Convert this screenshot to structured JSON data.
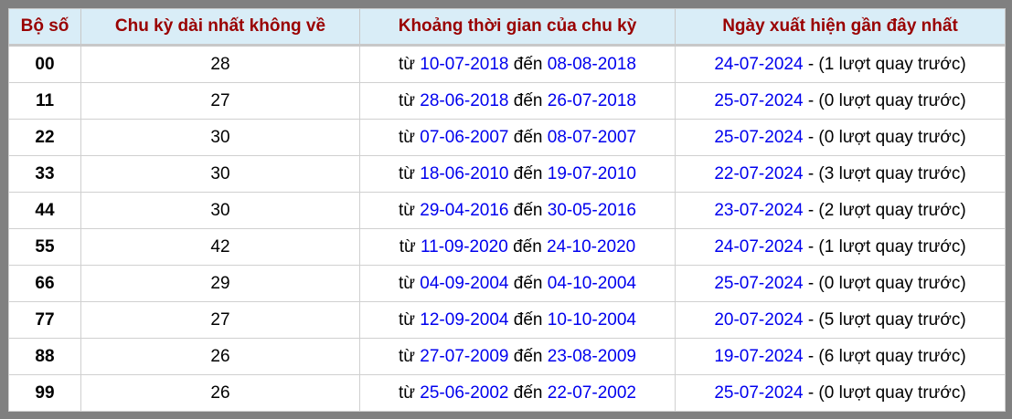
{
  "headers": [
    "Bộ số",
    "Chu kỳ dài nhất không về",
    "Khoảng thời gian của chu kỳ",
    "Ngày xuất hiện gần đây nhất"
  ],
  "labels": {
    "from": "từ",
    "to": "đến",
    "dash": "-",
    "turns_prefix": "(",
    "turns_suffix": "lượt quay trước)"
  },
  "colors": {
    "header_text": "#990000",
    "header_bg": "#d9edf7",
    "link": "#0000ee",
    "frame": "#808080"
  },
  "rows": [
    {
      "num": "00",
      "cycle": "28",
      "start": "10-07-2018",
      "end": "08-08-2018",
      "last": "24-07-2024",
      "turns": "1"
    },
    {
      "num": "11",
      "cycle": "27",
      "start": "28-06-2018",
      "end": "26-07-2018",
      "last": "25-07-2024",
      "turns": "0"
    },
    {
      "num": "22",
      "cycle": "30",
      "start": "07-06-2007",
      "end": "08-07-2007",
      "last": "25-07-2024",
      "turns": "0"
    },
    {
      "num": "33",
      "cycle": "30",
      "start": "18-06-2010",
      "end": "19-07-2010",
      "last": "22-07-2024",
      "turns": "3"
    },
    {
      "num": "44",
      "cycle": "30",
      "start": "29-04-2016",
      "end": "30-05-2016",
      "last": "23-07-2024",
      "turns": "2"
    },
    {
      "num": "55",
      "cycle": "42",
      "start": "11-09-2020",
      "end": "24-10-2020",
      "last": "24-07-2024",
      "turns": "1"
    },
    {
      "num": "66",
      "cycle": "29",
      "start": "04-09-2004",
      "end": "04-10-2004",
      "last": "25-07-2024",
      "turns": "0"
    },
    {
      "num": "77",
      "cycle": "27",
      "start": "12-09-2004",
      "end": "10-10-2004",
      "last": "20-07-2024",
      "turns": "5"
    },
    {
      "num": "88",
      "cycle": "26",
      "start": "27-07-2009",
      "end": "23-08-2009",
      "last": "19-07-2024",
      "turns": "6"
    },
    {
      "num": "99",
      "cycle": "26",
      "start": "25-06-2002",
      "end": "22-07-2002",
      "last": "25-07-2024",
      "turns": "0"
    }
  ]
}
